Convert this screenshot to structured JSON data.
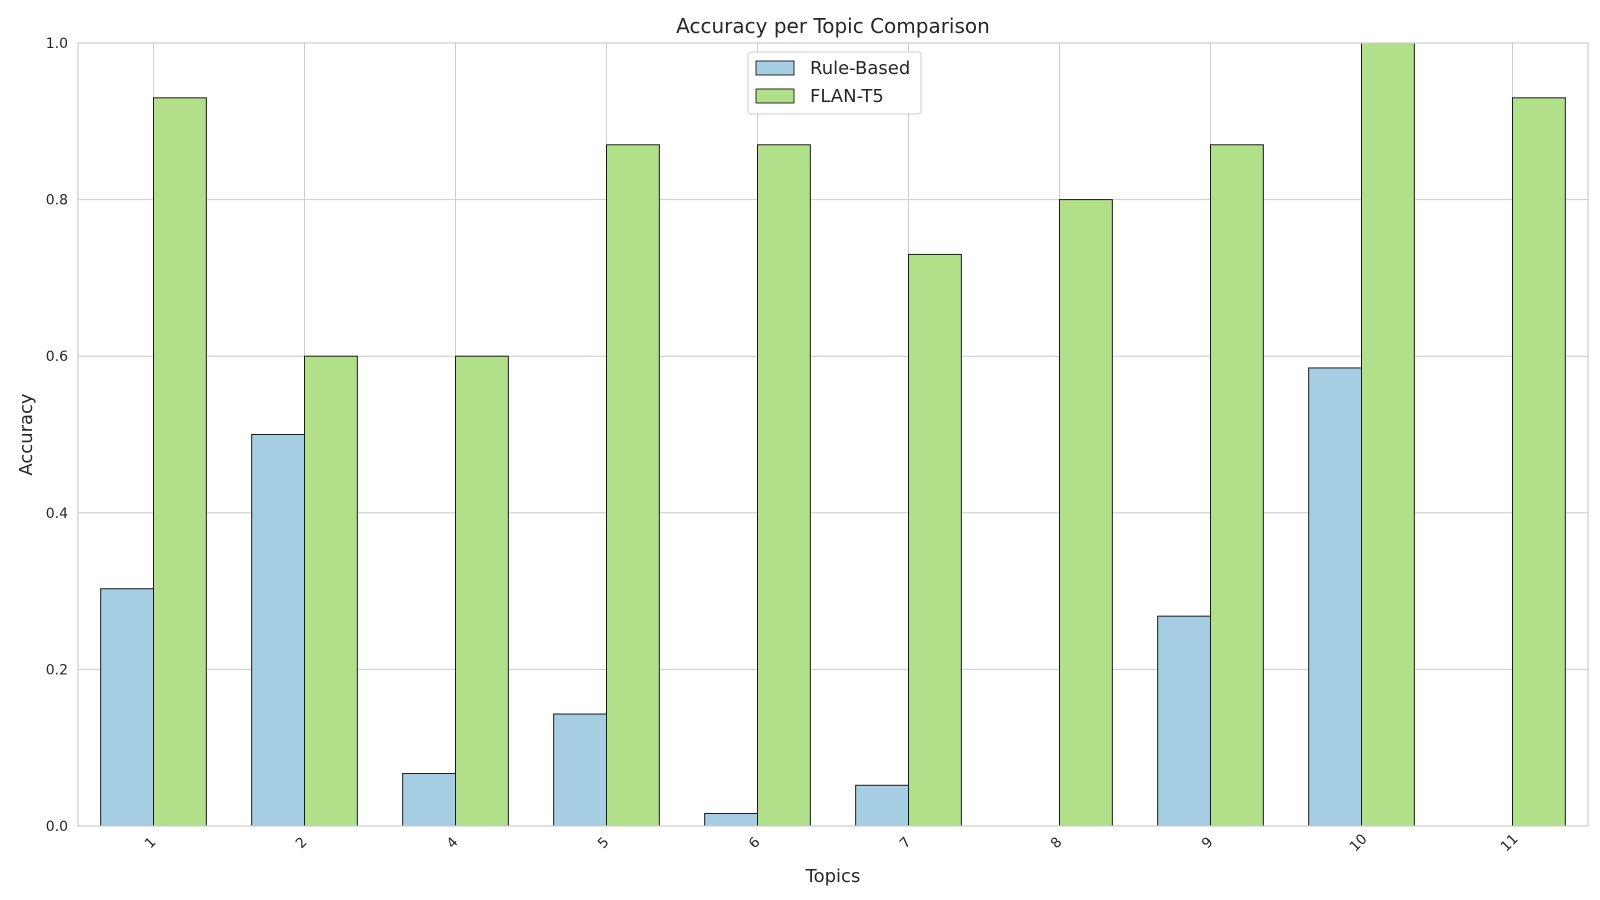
{
  "chart_data": {
    "type": "bar",
    "title": "Accuracy per Topic Comparison",
    "xlabel": "Topics",
    "ylabel": "Accuracy",
    "ylim": [
      0,
      1.0
    ],
    "yticks": [
      "0.0",
      "0.2",
      "0.4",
      "0.6",
      "0.8",
      "1.0"
    ],
    "categories": [
      "1",
      "2",
      "4",
      "5",
      "6",
      "7",
      "8",
      "9",
      "10",
      "11"
    ],
    "series": [
      {
        "name": "Rule-Based",
        "color": "#a6cee3",
        "values": [
          0.303,
          0.5,
          0.067,
          0.143,
          0.016,
          0.052,
          0.0,
          0.268,
          0.585,
          0.0
        ]
      },
      {
        "name": "FLAN-T5",
        "color": "#b2df8a",
        "values": [
          0.93,
          0.6,
          0.6,
          0.87,
          0.87,
          0.73,
          0.8,
          0.87,
          1.0,
          0.93
        ]
      }
    ],
    "grid": true,
    "legend_position": "top-center"
  }
}
